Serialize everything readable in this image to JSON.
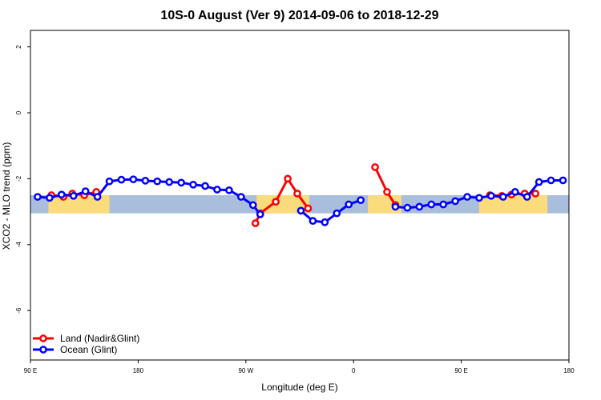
{
  "chart_data": {
    "type": "line",
    "title": "10S-0 August (Ver 9)   2014-09-06 to 2018-12-29",
    "xlabel": "Longitude (deg E)",
    "ylabel": "XCO2 - MLO trend (ppm)",
    "xlim": [
      90,
      540
    ],
    "ylim": [
      -7.5,
      2.5
    ],
    "x_ticks": [
      90,
      180,
      270,
      360,
      450,
      540
    ],
    "x_tick_labels": [
      "90 E",
      "180",
      "90 W",
      "0",
      "90 E",
      "180"
    ],
    "y_ticks": [
      -6,
      -4,
      -2,
      0,
      2
    ],
    "y_tick_labels": [
      "-6",
      "-4",
      "-2",
      "0",
      "2"
    ],
    "band": {
      "y_range": [
        -3.05,
        -2.5
      ],
      "ocean_color": "#a9bedd",
      "land_color": "#fbdc7d"
    },
    "land_segments": [
      [
        105,
        156
      ],
      [
        279,
        323
      ],
      [
        372,
        400
      ],
      [
        465,
        522
      ]
    ],
    "legend": {
      "position": "bottom-left"
    },
    "series": [
      {
        "name": "Land (Nadir&Glint)",
        "color": "#ff0000",
        "segments": [
          [
            [
              107.5,
              -2.5
            ],
            [
              117.5,
              -2.55
            ],
            [
              125,
              -2.45
            ],
            [
              135,
              -2.5
            ],
            [
              145,
              -2.4
            ]
          ],
          [
            [
              278,
              -3.35
            ],
            [
              282,
              -3.05
            ],
            [
              295,
              -2.7
            ],
            [
              305,
              -2.0
            ],
            [
              313,
              -2.45
            ],
            [
              322,
              -2.9
            ]
          ],
          [
            [
              378,
              -1.65
            ],
            [
              388,
              -2.4
            ],
            [
              395,
              -2.8
            ]
          ],
          [
            [
              474,
              -2.5
            ],
            [
              484,
              -2.52
            ],
            [
              492,
              -2.48
            ],
            [
              503,
              -2.45
            ],
            [
              512,
              -2.45
            ]
          ]
        ]
      },
      {
        "name": "Ocean (Glint)",
        "color": "#0000ff",
        "segments": [
          [
            [
              96,
              -2.55
            ],
            [
              106,
              -2.58
            ],
            [
              116,
              -2.48
            ],
            [
              126,
              -2.52
            ],
            [
              136,
              -2.38
            ],
            [
              146,
              -2.55
            ],
            [
              156,
              -2.08
            ],
            [
              166,
              -2.03
            ],
            [
              176,
              -2.02
            ],
            [
              186,
              -2.06
            ],
            [
              196,
              -2.08
            ],
            [
              206,
              -2.1
            ],
            [
              216,
              -2.12
            ],
            [
              226,
              -2.18
            ],
            [
              236,
              -2.22
            ],
            [
              246,
              -2.33
            ],
            [
              256,
              -2.35
            ],
            [
              266,
              -2.55
            ],
            [
              276,
              -2.8
            ],
            [
              282,
              -3.08
            ]
          ],
          [
            [
              316,
              -2.97
            ],
            [
              326,
              -3.28
            ],
            [
              336,
              -3.32
            ],
            [
              346,
              -3.05
            ],
            [
              356,
              -2.78
            ],
            [
              366,
              -2.65
            ]
          ],
          [
            [
              395,
              -2.85
            ],
            [
              405,
              -2.88
            ],
            [
              415,
              -2.85
            ],
            [
              425,
              -2.78
            ],
            [
              435,
              -2.78
            ],
            [
              445,
              -2.68
            ],
            [
              455,
              -2.55
            ],
            [
              465,
              -2.58
            ],
            [
              475,
              -2.52
            ],
            [
              485,
              -2.55
            ],
            [
              495,
              -2.4
            ],
            [
              505,
              -2.55
            ],
            [
              515,
              -2.1
            ],
            [
              525,
              -2.05
            ],
            [
              535,
              -2.05
            ]
          ]
        ]
      }
    ]
  }
}
